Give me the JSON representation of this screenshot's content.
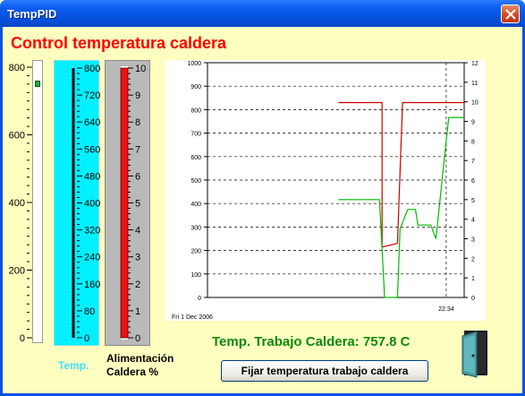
{
  "window": {
    "title": "TempPID"
  },
  "main_title": "Control temperatura caldera",
  "slider": {
    "ticks": [
      "800",
      "600",
      "400",
      "200",
      "0"
    ],
    "value_fraction": 0.94
  },
  "thermometer": {
    "label": "Temp.",
    "ticks": [
      "800",
      "720",
      "640",
      "560",
      "480",
      "400",
      "320",
      "240",
      "160",
      "80",
      "0"
    ],
    "color": "#00f0ff",
    "value_fraction": 1.0
  },
  "boiler": {
    "label_line1": "Alimentación",
    "label_line2": "Caldera %",
    "ticks": [
      "10",
      "9",
      "8",
      "7",
      "6",
      "5",
      "4",
      "3",
      "2",
      "1",
      "0"
    ],
    "bar_color": "#ee1111",
    "value_fraction": 1.0
  },
  "chart_data": {
    "type": "line",
    "date_label": "Fri 1 Dec 2006",
    "time_label": "22:34",
    "left_ticks": [
      "1000",
      "900",
      "800",
      "700",
      "600",
      "500",
      "400",
      "300",
      "200",
      "100",
      "0"
    ],
    "right_ticks": [
      "12",
      "11",
      "10",
      "9",
      "8",
      "7",
      "6",
      "5",
      "4",
      "3",
      "2",
      "1",
      "0"
    ],
    "ylim_left": [
      0,
      1000
    ],
    "ylim_right": [
      0,
      12
    ],
    "grid": true,
    "series": [
      {
        "axis": "left",
        "color": "#cc0000",
        "points": [
          [
            0.51,
            830
          ],
          [
            0.68,
            830
          ],
          [
            0.68,
            215
          ],
          [
            0.74,
            230
          ],
          [
            0.76,
            830
          ],
          [
            1.0,
            830
          ]
        ]
      },
      {
        "axis": "right",
        "color": "#00bb00",
        "points": [
          [
            0.51,
            5
          ],
          [
            0.67,
            5
          ],
          [
            0.69,
            0
          ],
          [
            0.74,
            0
          ],
          [
            0.75,
            3.5
          ],
          [
            0.78,
            4.5
          ],
          [
            0.81,
            4.5
          ],
          [
            0.82,
            3.7
          ],
          [
            0.87,
            3.7
          ],
          [
            0.89,
            3
          ],
          [
            0.93,
            8
          ],
          [
            0.94,
            9.2
          ],
          [
            1.0,
            9.2
          ]
        ]
      }
    ]
  },
  "work_temp_text": "Temp. Trabajo Caldera: 757.8 C",
  "set_button_label": "Fijar temperatura trabajo caldera",
  "colors": {
    "title_red": "#ff0000",
    "background": "#ffffc0",
    "work_temp_green": "#0a8a0a"
  }
}
